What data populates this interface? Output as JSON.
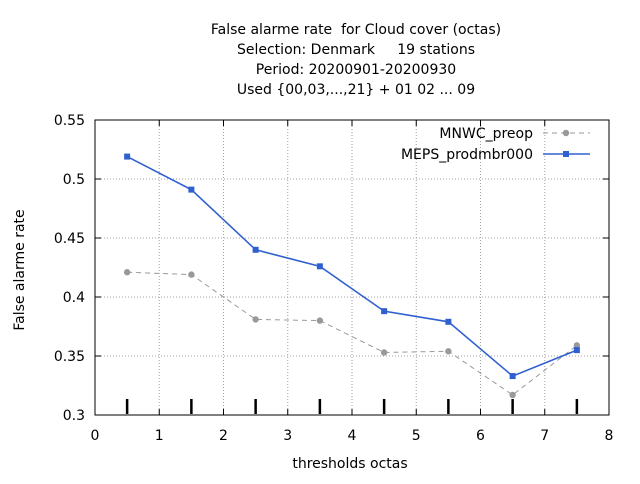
{
  "chart_data": {
    "type": "line",
    "title": [
      "False alarme rate  for Cloud cover (octas)",
      "Selection: Denmark     19 stations",
      "Period: 20200901-20200930",
      "Used {00,03,...,21} + 01 02 ... 09"
    ],
    "xlabel": "thresholds octas",
    "ylabel": "False alarme rate",
    "xlim": [
      0,
      8
    ],
    "ylim": [
      0.3,
      0.55
    ],
    "x_ticks": [
      "0",
      "1",
      "2",
      "3",
      "4",
      "5",
      "6",
      "7",
      "8"
    ],
    "y_ticks": [
      "0.3",
      "0.35",
      "0.4",
      "0.45",
      "0.5",
      "0.55"
    ],
    "x": [
      0.5,
      1.5,
      2.5,
      3.5,
      4.5,
      5.5,
      6.5,
      7.5
    ],
    "grid": true,
    "legend_position": "top-right",
    "series": [
      {
        "name": "MNWC_preop",
        "color": "#999999",
        "style": "dashed",
        "values": [
          0.421,
          0.419,
          0.381,
          0.38,
          0.353,
          0.354,
          0.317,
          0.359
        ]
      },
      {
        "name": "MEPS_prodmbr000",
        "color": "#3060d0",
        "style": "solid",
        "values": [
          0.519,
          0.491,
          0.44,
          0.426,
          0.388,
          0.379,
          0.333,
          0.355
        ]
      }
    ]
  }
}
